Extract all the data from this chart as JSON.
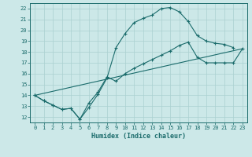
{
  "xlabel": "Humidex (Indice chaleur)",
  "ylabel": "",
  "xlim": [
    -0.5,
    23.5
  ],
  "ylim": [
    11.5,
    22.5
  ],
  "xticks": [
    0,
    1,
    2,
    3,
    4,
    5,
    6,
    7,
    8,
    9,
    10,
    11,
    12,
    13,
    14,
    15,
    16,
    17,
    18,
    19,
    20,
    21,
    22,
    23
  ],
  "yticks": [
    12,
    13,
    14,
    15,
    16,
    17,
    18,
    19,
    20,
    21,
    22
  ],
  "bg_color": "#cce8e8",
  "line_color": "#1a6b6b",
  "grid_color": "#aad0d0",
  "line1_x": [
    0,
    1,
    2,
    3,
    4,
    5,
    6,
    7,
    8,
    9,
    10,
    11,
    12,
    13,
    14,
    15,
    16,
    17,
    18,
    19,
    20,
    21,
    22
  ],
  "line1_y": [
    14.0,
    13.5,
    13.1,
    12.7,
    12.8,
    11.8,
    12.9,
    14.1,
    15.6,
    18.4,
    19.7,
    20.7,
    21.1,
    21.4,
    22.0,
    22.1,
    21.7,
    20.8,
    19.5,
    19.0,
    18.8,
    18.7,
    18.4
  ],
  "line2_x": [
    0,
    1,
    2,
    3,
    4,
    5,
    6,
    7,
    8,
    9,
    10,
    11,
    12,
    13,
    14,
    15,
    16,
    17,
    18,
    19,
    20,
    21,
    22,
    23
  ],
  "line2_y": [
    14.0,
    13.5,
    13.1,
    12.7,
    12.8,
    11.8,
    13.3,
    14.3,
    15.7,
    15.3,
    16.0,
    16.5,
    16.9,
    17.3,
    17.7,
    18.1,
    18.6,
    18.9,
    17.5,
    17.0,
    17.0,
    17.0,
    17.0,
    18.3
  ],
  "line3_x": [
    0,
    23
  ],
  "line3_y": [
    14.0,
    18.3
  ],
  "marker": "+"
}
